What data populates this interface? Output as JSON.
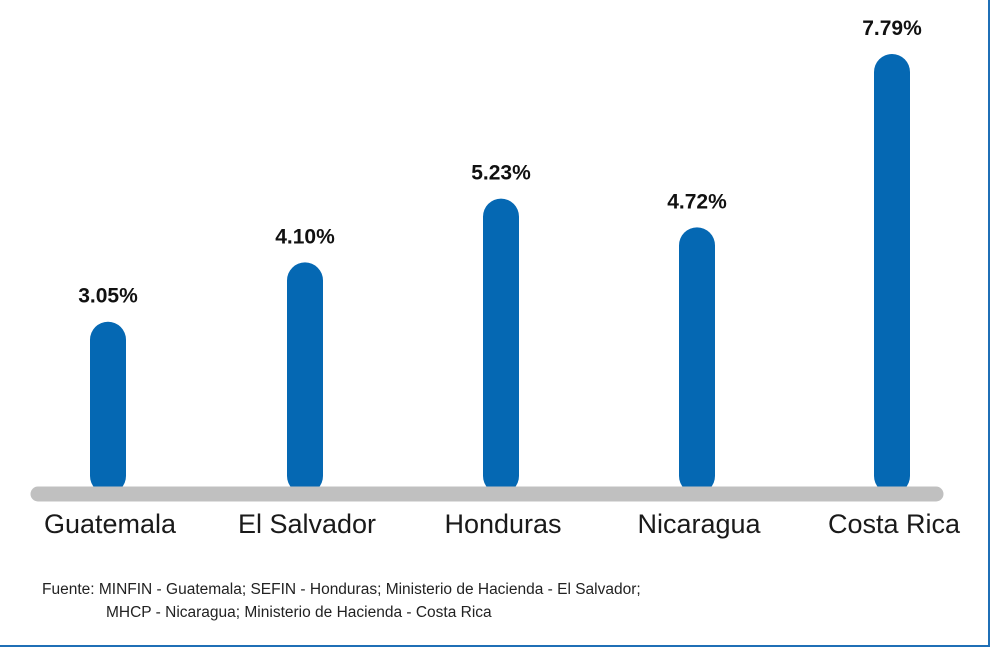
{
  "colors": {
    "bar": "#0568b3",
    "baseline": "#c0c0c0",
    "frame": "#1f6fb6"
  },
  "chart_data": {
    "type": "bar",
    "title": "",
    "xlabel": "",
    "ylabel": "",
    "ylim": [
      0,
      7.79
    ],
    "grid": false,
    "categories": [
      "Guatemala",
      "El Salvador",
      "Honduras",
      "Nicaragua",
      "Costa Rica"
    ],
    "values": [
      3.05,
      4.1,
      5.23,
      4.72,
      7.79
    ],
    "value_labels": [
      "3.05%",
      "4.10%",
      "5.23%",
      "4.72%",
      "7.79%"
    ]
  },
  "source": {
    "line1": "Fuente: MINFIN - Guatemala; SEFIN - Honduras; Ministerio de Hacienda - El Salvador;",
    "line2": "MHCP - Nicaragua; Ministerio de Hacienda - Costa Rica"
  }
}
